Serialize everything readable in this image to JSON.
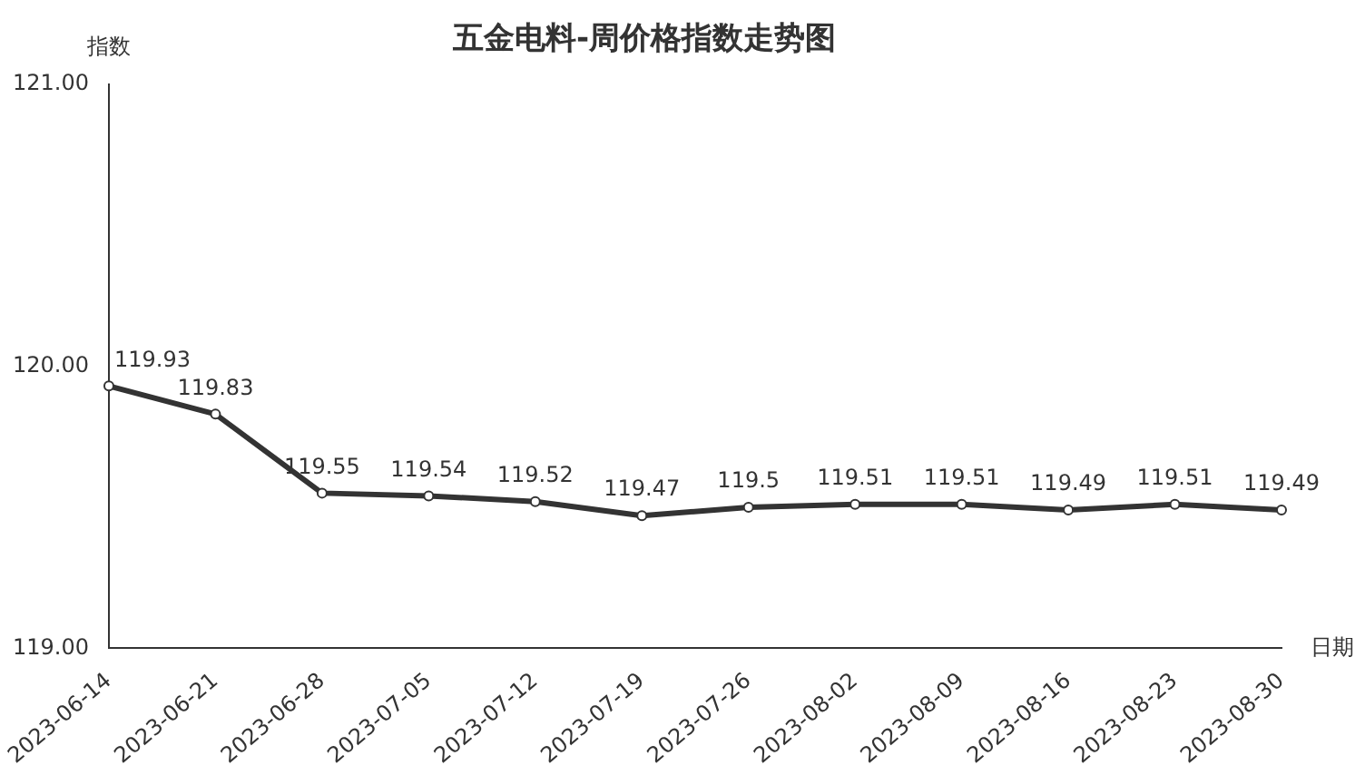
{
  "chart_data": {
    "type": "line",
    "title": "五金电料-周价格指数走势图",
    "xlabel": "日期",
    "ylabel": "指数",
    "categories": [
      "2023-06-14",
      "2023-06-21",
      "2023-06-28",
      "2023-07-05",
      "2023-07-12",
      "2023-07-19",
      "2023-07-26",
      "2023-08-02",
      "2023-08-09",
      "2023-08-16",
      "2023-08-23",
      "2023-08-30"
    ],
    "series": [
      {
        "color": "#333333",
        "values": [
          119.93,
          119.83,
          119.55,
          119.54,
          119.52,
          119.47,
          119.5,
          119.51,
          119.51,
          119.49,
          119.51,
          119.49
        ]
      }
    ],
    "ylim": [
      119,
      121
    ],
    "yticks": [
      {
        "value": 119,
        "label": "119.00"
      },
      {
        "value": 120,
        "label": "120.00"
      },
      {
        "value": 121,
        "label": "121.00"
      }
    ],
    "grid": false,
    "legend": false,
    "marker": "circle",
    "line_style": "solid",
    "data_labels": true
  }
}
